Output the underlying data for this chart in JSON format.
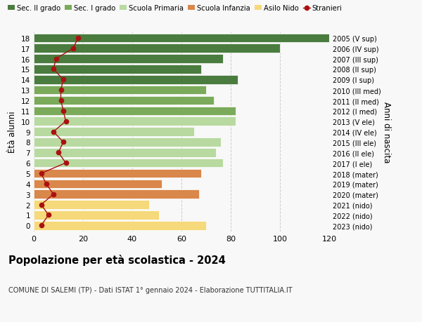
{
  "ages": [
    18,
    17,
    16,
    15,
    14,
    13,
    12,
    11,
    10,
    9,
    8,
    7,
    6,
    5,
    4,
    3,
    2,
    1,
    0
  ],
  "right_labels": [
    "2005 (V sup)",
    "2006 (IV sup)",
    "2007 (III sup)",
    "2008 (II sup)",
    "2009 (I sup)",
    "2010 (III med)",
    "2011 (II med)",
    "2012 (I med)",
    "2013 (V ele)",
    "2014 (IV ele)",
    "2015 (III ele)",
    "2016 (II ele)",
    "2017 (I ele)",
    "2018 (mater)",
    "2019 (mater)",
    "2020 (mater)",
    "2021 (nido)",
    "2022 (nido)",
    "2023 (nido)"
  ],
  "bar_values": [
    120,
    100,
    77,
    68,
    83,
    70,
    73,
    82,
    82,
    65,
    76,
    74,
    77,
    68,
    52,
    67,
    47,
    51,
    70
  ],
  "stranieri_values": [
    18,
    16,
    9,
    8,
    12,
    11,
    11,
    12,
    13,
    8,
    12,
    10,
    13,
    3,
    5,
    8,
    3,
    6,
    3
  ],
  "bar_colors": [
    "#4a7c3f",
    "#4a7c3f",
    "#4a7c3f",
    "#4a7c3f",
    "#4a7c3f",
    "#7aaa5a",
    "#7aaa5a",
    "#7aaa5a",
    "#b8d9a0",
    "#b8d9a0",
    "#b8d9a0",
    "#b8d9a0",
    "#b8d9a0",
    "#d9874a",
    "#d9874a",
    "#d9874a",
    "#f5d97a",
    "#f5d97a",
    "#f5d97a"
  ],
  "legend_labels": [
    "Sec. II grado",
    "Sec. I grado",
    "Scuola Primaria",
    "Scuola Infanzia",
    "Asilo Nido",
    "Stranieri"
  ],
  "legend_colors": [
    "#4a7c3f",
    "#7aaa5a",
    "#b8d9a0",
    "#d9874a",
    "#f5d97a",
    "#aa1111"
  ],
  "title": "Popolazione per età scolastica - 2024",
  "subtitle": "COMUNE DI SALEMI (TP) - Dati ISTAT 1° gennaio 2024 - Elaborazione TUTTITALIA.IT",
  "ylabel_left": "Ètà alunni",
  "ylabel_right": "Anni di nascita",
  "xlim": [
    0,
    120
  ],
  "xticks": [
    0,
    20,
    40,
    60,
    80,
    100,
    120
  ],
  "background_color": "#f8f8f8",
  "stranieri_color": "#aa1111"
}
